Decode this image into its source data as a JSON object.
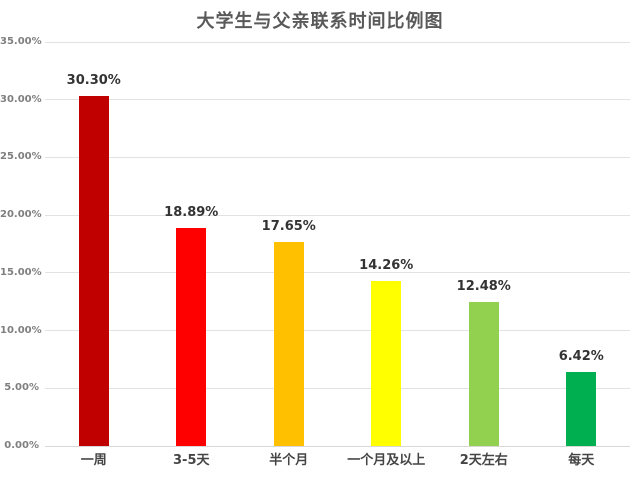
{
  "chart_data": {
    "type": "bar",
    "title": "大学生与父亲联系时间比例图",
    "categories": [
      "一周",
      "3-5天",
      "半个月",
      "一个月及以上",
      "2天左右",
      "每天"
    ],
    "values": [
      30.3,
      18.89,
      17.65,
      14.26,
      12.48,
      6.42
    ],
    "value_labels": [
      "30.30%",
      "18.89%",
      "17.65%",
      "14.26%",
      "12.48%",
      "6.42%"
    ],
    "bar_colors": [
      "#C00000",
      "#FF0000",
      "#FFC000",
      "#FFFF00",
      "#92D050",
      "#00B050"
    ],
    "xlabel": "",
    "ylabel": "",
    "ylim": [
      0,
      35
    ],
    "ytick_step": 5,
    "ytick_labels": [
      "0.00%",
      "5.00%",
      "10.00%",
      "15.00%",
      "20.00%",
      "25.00%",
      "30.00%",
      "35.00%"
    ],
    "grid": true,
    "legend": false,
    "grid_color": "#E2E2E2"
  }
}
